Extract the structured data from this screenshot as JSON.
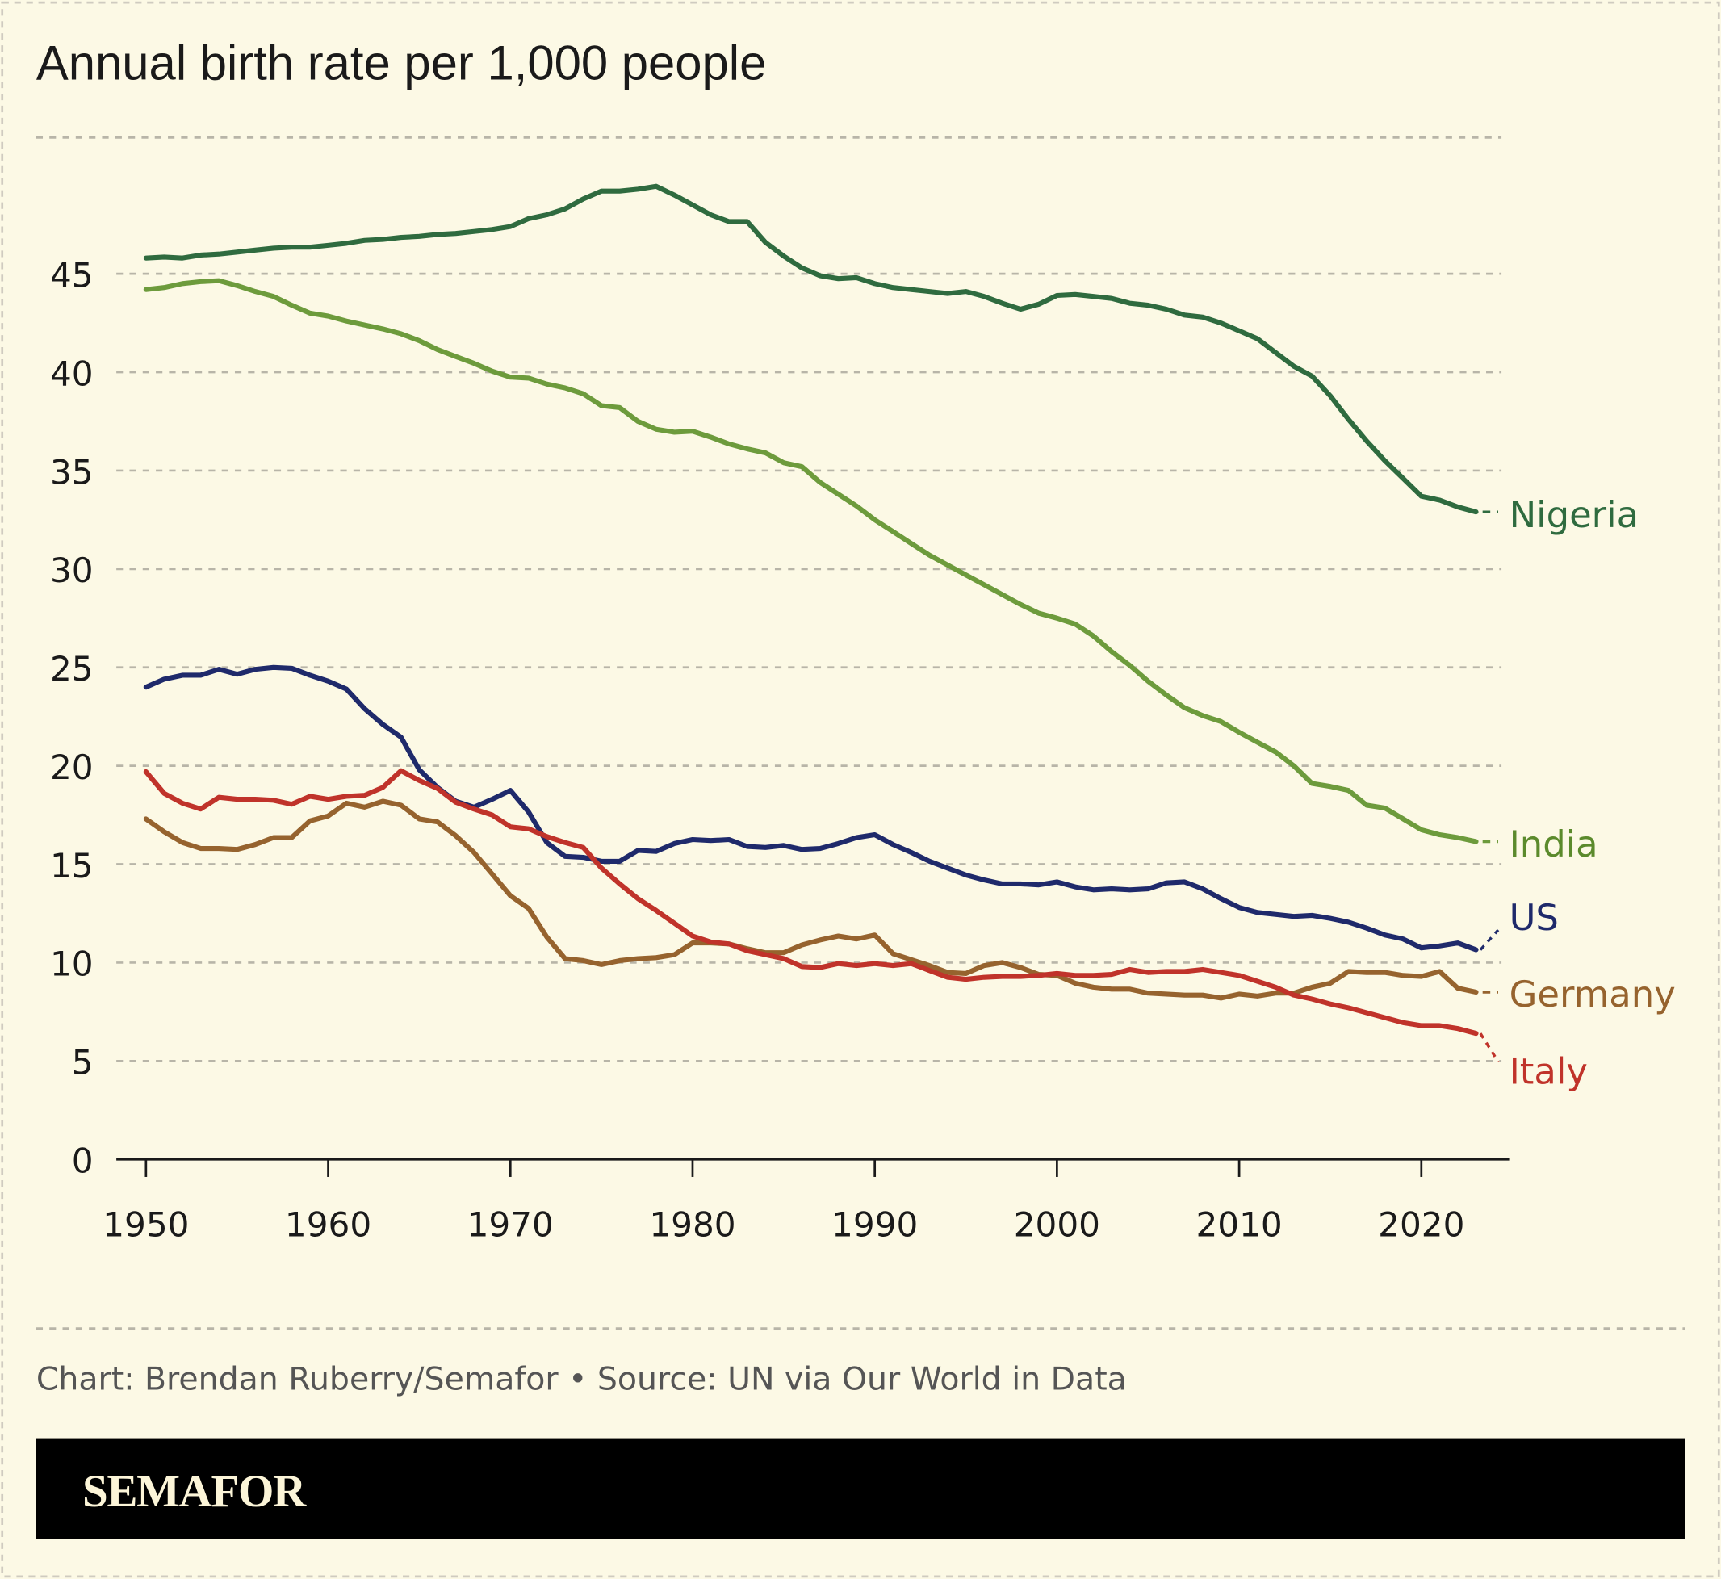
{
  "chart_data": {
    "type": "line",
    "title": "Annual birth rate per 1,000 people",
    "xlabel": "",
    "ylabel": "",
    "xlim": [
      1950,
      2023
    ],
    "ylim": [
      0,
      50
    ],
    "x_ticks": [
      "1950",
      "1960",
      "1970",
      "1980",
      "1990",
      "2000",
      "2010",
      "2020"
    ],
    "y_ticks": [
      "0",
      "5",
      "10",
      "15",
      "20",
      "25",
      "30",
      "35",
      "40",
      "45"
    ],
    "grid": true,
    "legend": "direct labels at right end of lines",
    "x": [
      1950,
      1951,
      1952,
      1953,
      1954,
      1955,
      1956,
      1957,
      1958,
      1959,
      1960,
      1961,
      1962,
      1963,
      1964,
      1965,
      1966,
      1967,
      1968,
      1969,
      1970,
      1971,
      1972,
      1973,
      1974,
      1975,
      1976,
      1977,
      1978,
      1979,
      1980,
      1981,
      1982,
      1983,
      1984,
      1985,
      1986,
      1987,
      1988,
      1989,
      1990,
      1991,
      1992,
      1993,
      1994,
      1995,
      1996,
      1997,
      1998,
      1999,
      2000,
      2001,
      2002,
      2003,
      2004,
      2005,
      2006,
      2007,
      2008,
      2009,
      2010,
      2011,
      2012,
      2013,
      2014,
      2015,
      2016,
      2017,
      2018,
      2019,
      2020,
      2021,
      2022,
      2023
    ],
    "series": [
      {
        "name": "Nigeria",
        "color": "#2f6b3f",
        "label_color": "#2f6b3f",
        "values": [
          45.8,
          45.85,
          45.8,
          45.95,
          46.0,
          46.1,
          46.2,
          46.3,
          46.35,
          46.35,
          46.45,
          46.55,
          46.7,
          46.75,
          46.85,
          46.9,
          47.0,
          47.05,
          47.15,
          47.25,
          47.4,
          47.8,
          48.0,
          48.3,
          48.8,
          49.2,
          49.2,
          49.3,
          49.45,
          49.0,
          48.5,
          48.0,
          47.65,
          47.65,
          46.6,
          45.9,
          45.3,
          44.9,
          44.75,
          44.8,
          44.5,
          44.3,
          44.2,
          44.1,
          44.0,
          44.1,
          43.85,
          43.5,
          43.2,
          43.45,
          43.9,
          43.95,
          43.85,
          43.75,
          43.5,
          43.4,
          43.2,
          42.9,
          42.8,
          42.5,
          42.1,
          41.7,
          41.0,
          40.3,
          39.8,
          38.8,
          37.6,
          36.5,
          35.5,
          34.6,
          33.7,
          33.5,
          33.15,
          32.9
        ]
      },
      {
        "name": "India",
        "color": "#6d9b3c",
        "label_color": "#5b8a2c",
        "values": [
          44.2,
          44.3,
          44.5,
          44.6,
          44.65,
          44.4,
          44.1,
          43.85,
          43.4,
          43.0,
          42.85,
          42.6,
          42.4,
          42.2,
          41.95,
          41.6,
          41.15,
          40.8,
          40.45,
          40.05,
          39.75,
          39.7,
          39.4,
          39.2,
          38.9,
          38.3,
          38.2,
          37.5,
          37.1,
          36.95,
          37.0,
          36.7,
          36.35,
          36.1,
          35.9,
          35.4,
          35.2,
          34.4,
          33.8,
          33.2,
          32.5,
          31.9,
          31.3,
          30.7,
          30.2,
          29.7,
          29.2,
          28.7,
          28.2,
          27.75,
          27.5,
          27.2,
          26.6,
          25.8,
          25.1,
          24.3,
          23.6,
          22.95,
          22.55,
          22.25,
          21.7,
          21.2,
          20.7,
          20.0,
          19.1,
          18.95,
          18.75,
          18.0,
          17.85,
          17.3,
          16.75,
          16.5,
          16.35,
          16.15
        ]
      },
      {
        "name": "US",
        "color": "#1f2a6b",
        "label_color": "#1f2a6b",
        "values": [
          24.0,
          24.4,
          24.6,
          24.6,
          24.9,
          24.65,
          24.9,
          25.0,
          24.95,
          24.6,
          24.3,
          23.9,
          22.9,
          22.1,
          21.45,
          19.8,
          18.9,
          18.2,
          17.9,
          18.3,
          18.75,
          17.65,
          16.1,
          15.4,
          15.35,
          15.15,
          15.15,
          15.7,
          15.65,
          16.05,
          16.25,
          16.2,
          16.25,
          15.9,
          15.85,
          15.95,
          15.75,
          15.8,
          16.05,
          16.35,
          16.5,
          16.0,
          15.6,
          15.15,
          14.8,
          14.45,
          14.2,
          14.0,
          14.0,
          13.95,
          14.1,
          13.85,
          13.7,
          13.75,
          13.7,
          13.75,
          14.05,
          14.1,
          13.75,
          13.25,
          12.8,
          12.55,
          12.45,
          12.35,
          12.4,
          12.25,
          12.05,
          11.75,
          11.4,
          11.2,
          10.75,
          10.85,
          11.0,
          10.65
        ]
      },
      {
        "name": "Germany",
        "color": "#96632e",
        "label_color": "#96632e",
        "values": [
          17.3,
          16.65,
          16.1,
          15.8,
          15.8,
          15.75,
          16.0,
          16.35,
          16.35,
          17.2,
          17.45,
          18.1,
          17.9,
          18.2,
          18.0,
          17.3,
          17.15,
          16.45,
          15.6,
          14.5,
          13.4,
          12.75,
          11.3,
          10.2,
          10.1,
          9.9,
          10.1,
          10.2,
          10.25,
          10.4,
          11.0,
          11.0,
          10.95,
          10.7,
          10.5,
          10.5,
          10.9,
          11.15,
          11.35,
          11.2,
          11.4,
          10.45,
          10.15,
          9.85,
          9.5,
          9.45,
          9.85,
          10.0,
          9.75,
          9.4,
          9.35,
          8.95,
          8.75,
          8.65,
          8.65,
          8.45,
          8.4,
          8.35,
          8.35,
          8.2,
          8.4,
          8.3,
          8.45,
          8.45,
          8.75,
          8.95,
          9.55,
          9.5,
          9.5,
          9.35,
          9.3,
          9.55,
          8.7,
          8.5
        ]
      },
      {
        "name": "Italy",
        "color": "#c0332a",
        "label_color": "#c0332a",
        "values": [
          19.7,
          18.6,
          18.1,
          17.8,
          18.4,
          18.3,
          18.3,
          18.25,
          18.05,
          18.45,
          18.3,
          18.45,
          18.5,
          18.9,
          19.75,
          19.25,
          18.85,
          18.15,
          17.8,
          17.5,
          16.9,
          16.8,
          16.4,
          16.1,
          15.85,
          14.8,
          14.0,
          13.25,
          12.65,
          12.0,
          11.35,
          11.05,
          10.95,
          10.6,
          10.4,
          10.2,
          9.8,
          9.75,
          9.95,
          9.85,
          9.95,
          9.85,
          9.95,
          9.6,
          9.25,
          9.15,
          9.25,
          9.3,
          9.3,
          9.35,
          9.45,
          9.35,
          9.35,
          9.4,
          9.65,
          9.5,
          9.55,
          9.55,
          9.65,
          9.5,
          9.35,
          9.05,
          8.75,
          8.35,
          8.15,
          7.9,
          7.7,
          7.45,
          7.2,
          6.95,
          6.8,
          6.8,
          6.65,
          6.4
        ]
      }
    ]
  },
  "footer": {
    "credit": "Chart: Brendan Ruberry/Semafor • Source: UN via Our World in Data",
    "logo": "SEMAFOR"
  },
  "colors": {
    "background": "#fcf9e5",
    "grid": "#b8b5a8",
    "logo_band": "#000000"
  }
}
